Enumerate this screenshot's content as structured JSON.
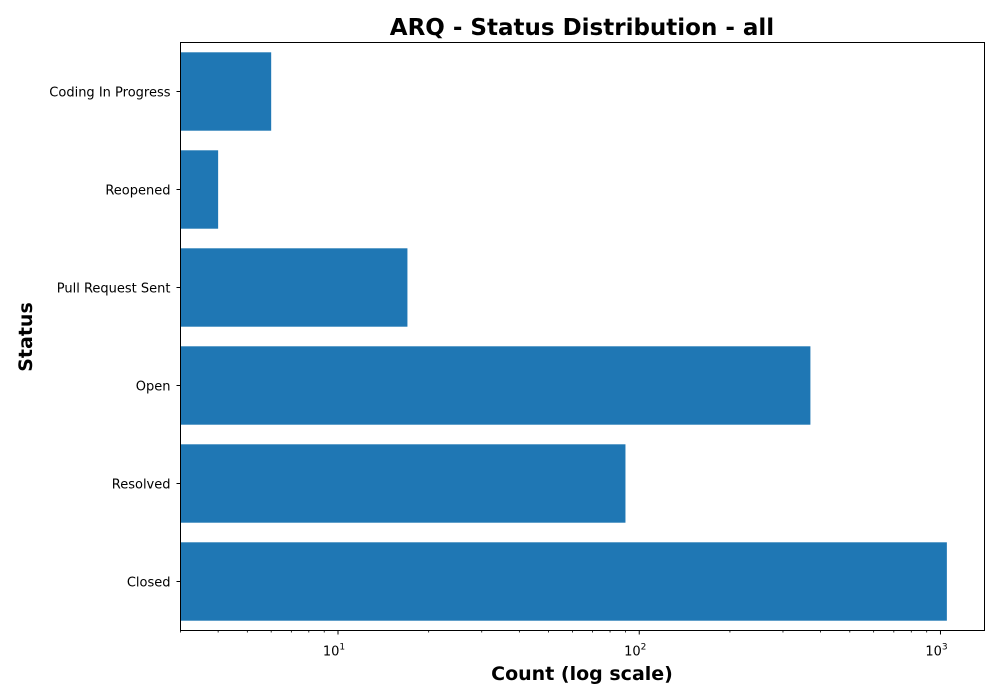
{
  "chart_data": {
    "type": "bar",
    "orientation": "horizontal",
    "title": "ARQ - Status Distribution - all",
    "xlabel": "Count (log scale)",
    "ylabel": "Status",
    "x_scale": "log",
    "xlim": [
      3,
      1400
    ],
    "categories": [
      "Coding In Progress",
      "Reopened",
      "Pull Request Sent",
      "Open",
      "Resolved",
      "Closed"
    ],
    "values": [
      6,
      4,
      17,
      370,
      90,
      1050
    ],
    "x_ticks": [
      {
        "base": "10",
        "exp": "1",
        "value": 10
      },
      {
        "base": "10",
        "exp": "2",
        "value": 100
      },
      {
        "base": "10",
        "exp": "3",
        "value": 1000
      }
    ],
    "bar_color": "#1f77b4",
    "grid": false,
    "legend": "none"
  }
}
